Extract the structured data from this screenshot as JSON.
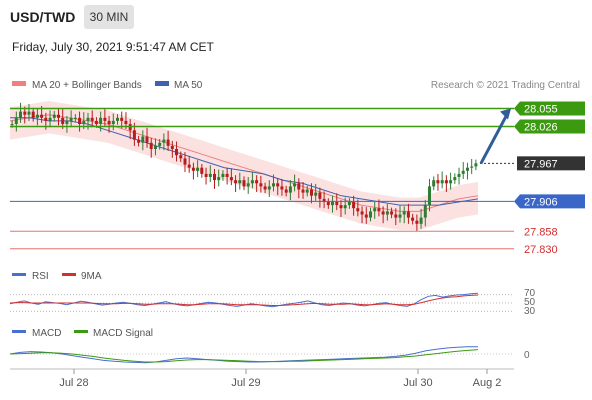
{
  "header": {
    "symbol": "USD/TWD",
    "timeframe": "30 MIN",
    "datetime": "Friday, July 30, 2021 9:51:47 AM CET"
  },
  "legend": {
    "ma20": "MA 20 + Bollinger Bands",
    "ma50": "MA 50",
    "credit": "Research © 2021 Trading Central"
  },
  "colors": {
    "ma20": "#f08080",
    "ma50": "#4060b0",
    "resistance": "#3c9a10",
    "pivot": "#3a66c8",
    "support": "#e57373",
    "band": "#fbdada",
    "candle_up": "#2e7d32",
    "candle_down": "#b71c1c",
    "arrow": "#2e5d9a",
    "current": "#333333"
  },
  "chart_data": [
    {
      "type": "candlestick",
      "x_ticks": [
        "Jul 28",
        "Jul 29",
        "Jul 30",
        "Aug 2"
      ],
      "ylim": [
        27.82,
        28.075
      ],
      "levels": [
        {
          "value": 28.055,
          "label": "28.055",
          "kind": "resistance"
        },
        {
          "value": 28.026,
          "label": "28.026",
          "kind": "resistance"
        },
        {
          "value": 27.967,
          "label": "27.967",
          "kind": "current"
        },
        {
          "value": 27.906,
          "label": "27.906",
          "kind": "pivot"
        },
        {
          "value": 27.858,
          "label": "27.858",
          "kind": "support"
        },
        {
          "value": 27.83,
          "label": "27.830",
          "kind": "support"
        }
      ],
      "closes": [
        28.03,
        28.04,
        28.05,
        28.045,
        28.05,
        28.04,
        28.045,
        28.04,
        28.035,
        28.04,
        28.045,
        28.04,
        28.03,
        28.035,
        28.04,
        28.04,
        28.03,
        28.035,
        28.04,
        28.035,
        28.03,
        28.04,
        28.035,
        28.03,
        28.035,
        28.04,
        28.035,
        28.03,
        28.02,
        28.005,
        28.0,
        28.01,
        28.0,
        27.99,
        27.995,
        28.0,
        28.005,
        27.995,
        27.99,
        27.98,
        27.975,
        27.965,
        27.96,
        27.955,
        27.96,
        27.95,
        27.945,
        27.95,
        27.94,
        27.945,
        27.95,
        27.945,
        27.94,
        27.935,
        27.94,
        27.93,
        27.935,
        27.94,
        27.935,
        27.93,
        27.925,
        27.93,
        27.935,
        27.93,
        27.925,
        27.92,
        27.93,
        27.935,
        27.925,
        27.92,
        27.925,
        27.915,
        27.92,
        27.91,
        27.905,
        27.9,
        27.905,
        27.9,
        27.895,
        27.9,
        27.905,
        27.895,
        27.89,
        27.885,
        27.88,
        27.89,
        27.895,
        27.89,
        27.885,
        27.89,
        27.885,
        27.88,
        27.885,
        27.89,
        27.88,
        27.875,
        27.87,
        27.88,
        27.9,
        27.93,
        27.94,
        27.935,
        27.94,
        27.935,
        27.94,
        27.945,
        27.95,
        27.955,
        27.96,
        27.962,
        27.967
      ],
      "ma20_pts": [
        28.035,
        28.04,
        28.045,
        28.04,
        28.035,
        28.03,
        28.02,
        28.01,
        28.0,
        27.99,
        27.98,
        27.97,
        27.96,
        27.95,
        27.94,
        27.93,
        27.92,
        27.91,
        27.9,
        27.895,
        27.89,
        27.89,
        27.9,
        27.91,
        27.915
      ],
      "ma50_pts": [
        28.04,
        28.04,
        28.035,
        28.035,
        28.03,
        28.02,
        28.01,
        28.0,
        27.99,
        27.98,
        27.97,
        27.96,
        27.955,
        27.95,
        27.94,
        27.935,
        27.925,
        27.915,
        27.91,
        27.905,
        27.9,
        27.9,
        27.9,
        27.905,
        27.91
      ]
    },
    {
      "type": "line",
      "name": "RSI",
      "legend": [
        "RSI",
        "9MA"
      ],
      "levels": [
        "70",
        "50",
        "30"
      ],
      "ylim": [
        0,
        100
      ],
      "rsi": [
        48,
        52,
        55,
        50,
        47,
        53,
        51,
        49,
        46,
        50,
        54,
        52,
        48,
        45,
        47,
        50,
        52,
        49,
        46,
        44,
        47,
        50,
        53,
        48,
        45,
        43,
        46,
        49,
        52,
        50,
        47,
        44,
        42,
        45,
        48,
        46,
        43,
        41,
        44,
        47,
        49,
        52,
        55,
        50,
        46,
        44,
        47,
        50,
        48,
        45,
        43,
        46,
        49,
        51,
        47,
        44,
        42,
        48,
        58,
        66,
        68,
        64,
        67,
        69,
        70,
        72,
        73
      ],
      "ma9": [
        50,
        51,
        51,
        50,
        50,
        50,
        50,
        50,
        50,
        50,
        50,
        50,
        49,
        48,
        48,
        48,
        49,
        49,
        48,
        47,
        47,
        48,
        48,
        48,
        47,
        46,
        46,
        47,
        48,
        48,
        48,
        47,
        46,
        46,
        46,
        46,
        45,
        44,
        44,
        45,
        46,
        47,
        48,
        49,
        48,
        47,
        47,
        47,
        48,
        47,
        46,
        46,
        47,
        48,
        47,
        46,
        46,
        47,
        51,
        55,
        59,
        62,
        64,
        65,
        67,
        68,
        69
      ]
    },
    {
      "type": "line",
      "name": "MACD",
      "legend": [
        "MACD",
        "MACD Signal"
      ],
      "zero_label": "0",
      "ylim": [
        -0.04,
        0.03
      ],
      "macd": [
        0.0,
        0.004,
        0.006,
        0.005,
        0.003,
        0.0,
        -0.004,
        -0.008,
        -0.012,
        -0.016,
        -0.018,
        -0.02,
        -0.021,
        -0.022,
        -0.02,
        -0.016,
        -0.012,
        -0.01,
        -0.012,
        -0.014,
        -0.016,
        -0.018,
        -0.019,
        -0.02,
        -0.02,
        -0.019,
        -0.018,
        -0.017,
        -0.016,
        -0.015,
        -0.014,
        -0.013,
        -0.012,
        -0.011,
        -0.01,
        -0.009,
        -0.008,
        -0.006,
        -0.003,
        0.002,
        0.008,
        0.012,
        0.015,
        0.017,
        0.018,
        0.018
      ],
      "signal": [
        0.0,
        0.001,
        0.002,
        0.003,
        0.003,
        0.002,
        0.0,
        -0.003,
        -0.006,
        -0.01,
        -0.013,
        -0.016,
        -0.018,
        -0.02,
        -0.02,
        -0.019,
        -0.017,
        -0.015,
        -0.014,
        -0.014,
        -0.015,
        -0.016,
        -0.017,
        -0.018,
        -0.019,
        -0.019,
        -0.019,
        -0.018,
        -0.018,
        -0.017,
        -0.016,
        -0.015,
        -0.014,
        -0.013,
        -0.012,
        -0.011,
        -0.01,
        -0.009,
        -0.007,
        -0.005,
        -0.002,
        0.001,
        0.004,
        0.007,
        0.009,
        0.011
      ]
    }
  ]
}
